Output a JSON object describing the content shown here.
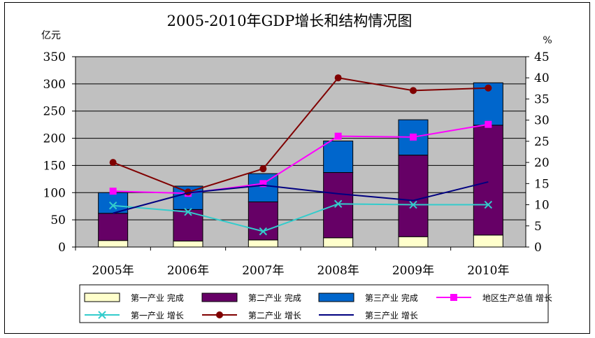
{
  "chart_data": {
    "type": "bar",
    "title": "2005-2010年GDP增长和结构情况图",
    "y_left_unit": "亿元",
    "y_right_unit": "%",
    "categories": [
      "2005年",
      "2006年",
      "2007年",
      "2008年",
      "2009年",
      "2010年"
    ],
    "y_left_ticks": [
      "0",
      "50",
      "100",
      "150",
      "200",
      "250",
      "300",
      "350"
    ],
    "y_right_ticks": [
      "0",
      "5",
      "10",
      "15",
      "20",
      "25",
      "30",
      "35",
      "40",
      "45"
    ],
    "ylim_left": [
      0,
      350
    ],
    "ylim_right": [
      0,
      45
    ],
    "grid": true,
    "legend_position": "bottom",
    "stacked_bars": [
      {
        "name": "第一产业 完成",
        "color": "#ffffcc",
        "values": [
          12,
          11,
          13,
          17,
          19,
          22
        ]
      },
      {
        "name": "第二产业 完成",
        "color": "#660066",
        "values": [
          50,
          58,
          70,
          120,
          150,
          202
        ]
      },
      {
        "name": "第三产业 完成",
        "color": "#0066cc",
        "values": [
          38,
          43,
          52,
          58,
          65,
          78
        ]
      }
    ],
    "lines": [
      {
        "name": "地区生产总值 增长",
        "color": "#ff00ff",
        "marker": "square",
        "axis": "right",
        "values": [
          13.2,
          12.7,
          15.0,
          26.2,
          26.0,
          29.0
        ]
      },
      {
        "name": "第一产业 增长",
        "color": "#33cccc",
        "marker": "x",
        "axis": "right",
        "values": [
          9.8,
          8.3,
          3.7,
          10.2,
          10.0,
          10.0
        ]
      },
      {
        "name": "第二产业 增长",
        "color": "#800000",
        "marker": "circle",
        "axis": "right",
        "values": [
          20.0,
          13.0,
          18.5,
          40.0,
          37.0,
          37.6
        ]
      },
      {
        "name": "第三产业 增长",
        "color": "#000080",
        "marker": "none",
        "axis": "right",
        "values": [
          8.0,
          12.8,
          14.6,
          12.6,
          11.0,
          15.4
        ]
      }
    ],
    "legend_order": [
      "第一产业 完成",
      "第二产业 完成",
      "第三产业 完成",
      "地区生产总值 增长",
      "第一产业 增长",
      "第二产业 增长",
      "第三产业 增长"
    ]
  },
  "colors": {
    "plot_background": "#c0c0c0",
    "grid": "#000000"
  }
}
